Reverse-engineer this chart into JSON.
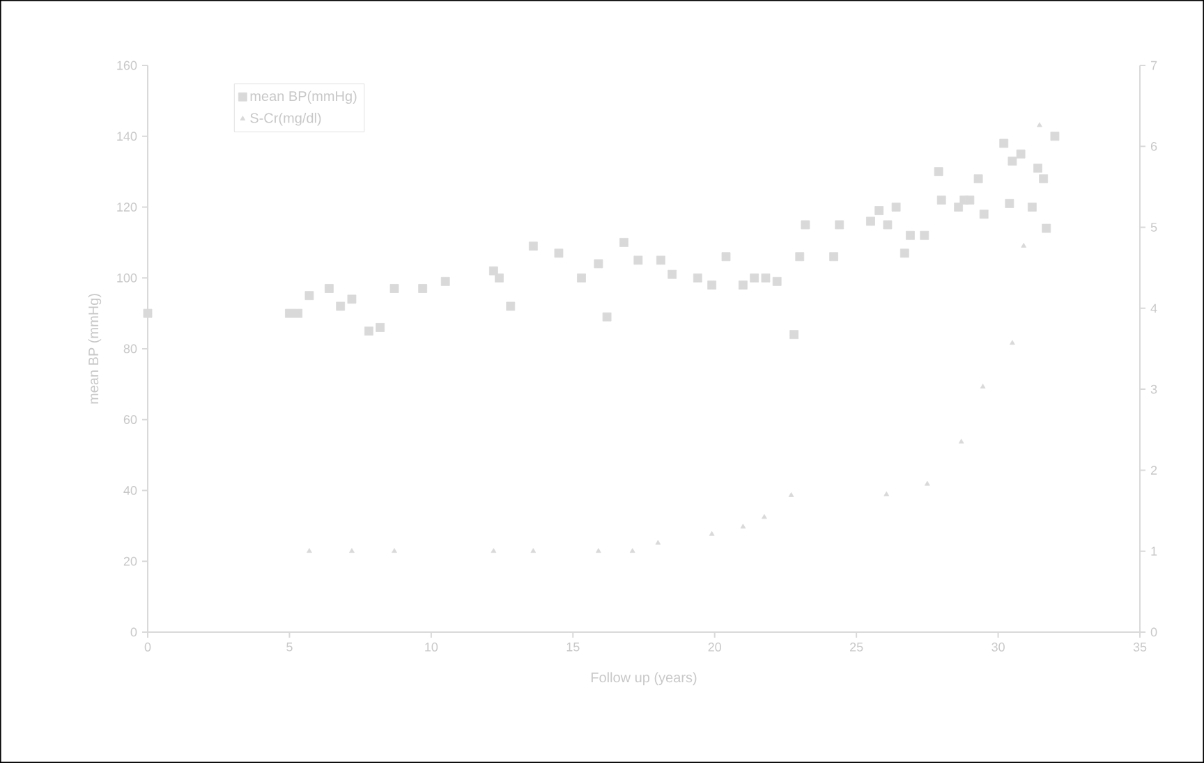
{
  "chart_data": {
    "type": "scatter",
    "xlabel": "Follow up (years)",
    "ylabel": "mean BP (mmHg)",
    "xlim": [
      0,
      35
    ],
    "xticks": [
      0,
      5,
      10,
      15,
      20,
      25,
      30,
      35
    ],
    "ylim": [
      0,
      160
    ],
    "yticks": [
      0,
      20,
      40,
      60,
      80,
      100,
      120,
      140,
      160
    ],
    "y2lim": [
      0,
      7
    ],
    "y2ticks": [
      0,
      1,
      2,
      3,
      4,
      5,
      6,
      7
    ],
    "grid": false,
    "legend": "top left",
    "series": [
      {
        "name": "mean BP(mmHg)",
        "color": "#d9d9d9",
        "marker": "square",
        "x": [
          0,
          5,
          5.3,
          5.7,
          6.4,
          6.8,
          7.2,
          7.8,
          8.2,
          8.7,
          9.7,
          10.5,
          12.2,
          12.4,
          12.8,
          13.6,
          14.5,
          15.3,
          15.9,
          16.2,
          16.8,
          17.3,
          18.1,
          18.5,
          19.4,
          19.9,
          20.4,
          21.0,
          21.4,
          21.8,
          22.2,
          22.8,
          23.0,
          23.2,
          24.2,
          24.4,
          25.5,
          25.8,
          26.1,
          26.4,
          26.7,
          26.9,
          27.4,
          27.9,
          28.0,
          28.6,
          28.8,
          29.0,
          29.3,
          29.5,
          30.2,
          30.4,
          30.5,
          30.8,
          31.2,
          31.4,
          31.6,
          31.7,
          32.0
        ],
        "values": [
          90,
          90,
          90,
          95,
          97,
          92,
          94,
          85,
          86,
          97,
          97,
          99,
          102,
          100,
          92,
          109,
          107,
          100,
          104,
          89,
          110,
          105,
          105,
          101,
          100,
          98,
          106,
          98,
          100,
          100,
          99,
          84,
          106,
          115,
          106,
          115,
          116,
          119,
          115,
          120,
          107,
          112,
          112,
          130,
          122,
          120,
          122,
          122,
          128,
          118,
          138,
          121,
          133,
          135,
          120,
          131,
          128,
          114,
          140
        ]
      },
      {
        "name": "S-Cr(mg/dl)",
        "color": "#d9d9d9",
        "marker": "triangle",
        "axis": "y2",
        "x": [
          5.7,
          7.2,
          8.7,
          12.2,
          13.6,
          15.9,
          17.1,
          18.0,
          19.9,
          21.0,
          21.75,
          22.7,
          26.06,
          27.5,
          28.7,
          29.46,
          30.5,
          30.9,
          31.46
        ],
        "values": [
          1.0,
          1.0,
          1.0,
          1.0,
          1.0,
          1.0,
          1.0,
          1.1,
          1.21,
          1.3,
          1.42,
          1.69,
          1.7,
          1.83,
          2.35,
          3.03,
          3.57,
          4.77,
          6.26
        ]
      }
    ]
  }
}
